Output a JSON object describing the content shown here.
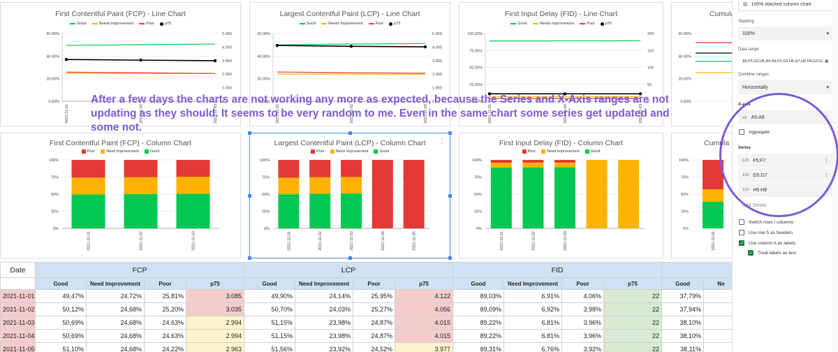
{
  "colors": {
    "good": "#00c853",
    "ni": "#ffb300",
    "poor": "#e53935",
    "p75": "#000000",
    "accent": "#7b5bd6"
  },
  "line_legend": {
    "good": "Good",
    "ni": "Needs Improvement",
    "poor": "Poor",
    "p75": "p75"
  },
  "col_legend": {
    "poor": "Poor",
    "ni": "Need Improvement",
    "good": "Good"
  },
  "cards_top": [
    {
      "title": "First Contentful Paint (FCP) - Line Chart"
    },
    {
      "title": "Largest Contentful Paint (LCP) - Line Chart"
    },
    {
      "title": "First Input Delay (FID) - Line Chart"
    },
    {
      "title": "Cumula"
    }
  ],
  "cards_bottom": [
    {
      "title": "First Contentful Paint (FCP) - Column Chart"
    },
    {
      "title": "Largest Contentful Paint (LCP) - Column Chart"
    },
    {
      "title": "First Input Delay (FID) - Column Chart"
    },
    {
      "title": "Cumula"
    }
  ],
  "chart_data": [
    {
      "type": "line",
      "title": "First Contentful Paint (FCP) - Line Chart",
      "x": [
        "2021-11-01",
        "2021-11-02",
        "2021-11-03"
      ],
      "series": [
        {
          "name": "Good",
          "axis": "left",
          "values": [
            49.47,
            50.12,
            50.69
          ]
        },
        {
          "name": "Needs Improvement",
          "axis": "left",
          "values": [
            24.72,
            24.68,
            24.68
          ]
        },
        {
          "name": "Poor",
          "axis": "left",
          "values": [
            25.81,
            25.2,
            24.63
          ]
        },
        {
          "name": "p75",
          "axis": "right",
          "values": [
            3.085,
            3.035,
            2.994
          ]
        }
      ],
      "yticks_left": [
        "60,00%",
        "40,00%",
        "20,00%",
        "0,00%"
      ],
      "yticks_right": [
        "5.000",
        "4.000",
        "3.000",
        "2.000",
        "1.000",
        "0"
      ]
    },
    {
      "type": "line",
      "title": "Largest Contentful Paint (LCP) - Line Chart",
      "x": [
        "2021-11-01",
        "2021-11-02",
        "2021-11-03"
      ],
      "series": [
        {
          "name": "Good",
          "axis": "left",
          "values": [
            49.9,
            50.7,
            51.15
          ]
        },
        {
          "name": "Needs Improvement",
          "axis": "left",
          "values": [
            24.14,
            24.03,
            23.98
          ]
        },
        {
          "name": "Poor",
          "axis": "left",
          "values": [
            25.95,
            25.27,
            24.87
          ]
        },
        {
          "name": "p75",
          "axis": "right",
          "values": [
            4.122,
            4.056,
            4.015
          ]
        }
      ],
      "yticks_left": [
        "60,00%",
        "40,00%",
        "20,00%",
        "0,00%"
      ],
      "yticks_right": [
        "5.000",
        "4.000",
        "3.000",
        "2.000",
        "1.000",
        "0"
      ]
    },
    {
      "type": "line",
      "title": "First Input Delay (FID) - Line Chart",
      "x": [
        "2021-11-01",
        "2021-11-02",
        "2021-11-03"
      ],
      "series": [
        {
          "name": "Good",
          "axis": "left",
          "values": [
            89.03,
            89.09,
            89.22
          ]
        },
        {
          "name": "Needs Improvement",
          "axis": "left",
          "values": [
            6.91,
            6.92,
            6.81
          ]
        },
        {
          "name": "Poor",
          "axis": "left",
          "values": [
            4.06,
            3.98,
            3.96
          ]
        },
        {
          "name": "p75",
          "axis": "right",
          "values": [
            22,
            22,
            22
          ]
        }
      ],
      "yticks_left": [
        "100,00%",
        "75,00%",
        "50,00%",
        "25,00%",
        "0,00%"
      ],
      "yticks_right": [
        "200",
        "150",
        "100",
        "50",
        "0"
      ]
    },
    {
      "type": "bar",
      "stacked": "100%",
      "title": "First Contentful Paint (FCP) - Column Chart",
      "categories": [
        "2021-11-01",
        "2021-11-02",
        "2021-11-03"
      ],
      "series": [
        {
          "name": "Good",
          "values": [
            49.47,
            50.12,
            50.69
          ]
        },
        {
          "name": "Need Improvement",
          "values": [
            24.72,
            24.68,
            24.68
          ]
        },
        {
          "name": "Poor",
          "values": [
            25.81,
            25.2,
            24.63
          ]
        }
      ],
      "yticks": [
        "100%",
        "75%",
        "50%",
        "25%",
        "0%"
      ]
    },
    {
      "type": "bar",
      "stacked": "100%",
      "title": "Largest Contentful Paint (LCP) - Column Chart",
      "categories": [
        "2021-11-01",
        "2021-11-02",
        "2021-11-03",
        "2021-11-04",
        "2021-11-05"
      ],
      "series": [
        {
          "name": "Good",
          "values": [
            49.9,
            50.7,
            51.15,
            0,
            0
          ]
        },
        {
          "name": "Need Improvement",
          "values": [
            24.14,
            24.03,
            23.98,
            0,
            0
          ]
        },
        {
          "name": "Poor",
          "values": [
            25.95,
            25.27,
            24.87,
            100,
            100
          ]
        }
      ],
      "yticks": [
        "100%",
        "75%",
        "50%",
        "25%",
        "0%"
      ]
    },
    {
      "type": "bar",
      "stacked": "100%",
      "title": "First Input Delay (FID) - Column Chart",
      "categories": [
        "2021-11-01",
        "2021-11-02",
        "2021-11-03",
        "",
        ""
      ],
      "series": [
        {
          "name": "Good",
          "values": [
            89.03,
            89.09,
            89.22,
            0,
            0
          ]
        },
        {
          "name": "Need Improvement",
          "values": [
            6.91,
            6.92,
            6.81,
            100,
            100
          ]
        },
        {
          "name": "Poor",
          "values": [
            4.06,
            3.98,
            3.96,
            0,
            0
          ]
        }
      ],
      "yticks": [
        "100%",
        "75%",
        "50%",
        "25%",
        "0%"
      ]
    }
  ],
  "partial": {
    "top_ticks": [
      "60,00%",
      "40,00%",
      "20,00%",
      "0,00%"
    ],
    "bottom_ticks": [
      "100%",
      "75%",
      "50%",
      "25%",
      "0%"
    ],
    "bottom_x": [
      "2021-11-01"
    ]
  },
  "overlay_text": "After a few days the charts are not working any more as expected, because the Series and X-Axis ranges are not updating as they should. It seems to be very random to me. Even in the same chart some series get updated and some not.",
  "table": {
    "group_headers": [
      "Date",
      "FCP",
      "LCP",
      "FID",
      ""
    ],
    "sub_headers": [
      "",
      "Good",
      "Need Improvement",
      "Poor",
      "p75",
      "Good",
      "Need Improvement",
      "Poor",
      "p75",
      "Good",
      "Need Improvement",
      "Poor",
      "p75",
      "Good",
      "Ne"
    ],
    "rows": [
      [
        "2021-11-01",
        "49,47%",
        "24,72%",
        "25,81%",
        "3.085",
        "49,90%",
        "24,14%",
        "25,95%",
        "4.122",
        "89,03%",
        "6,91%",
        "4,06%",
        "22",
        "37,79%"
      ],
      [
        "2021-11-02",
        "50,12%",
        "24,68%",
        "25,20%",
        "3.035",
        "50,70%",
        "24,03%",
        "25,27%",
        "4.056",
        "89,09%",
        "6,92%",
        "3,98%",
        "22",
        "37,94%"
      ],
      [
        "2021-11-03",
        "50,69%",
        "24,68%",
        "24,63%",
        "2.994",
        "51,15%",
        "23,98%",
        "24,87%",
        "4.015",
        "89,22%",
        "6,81%",
        "3,96%",
        "22",
        "38,10%"
      ],
      [
        "2021-11-04",
        "50,69%",
        "24,68%",
        "24,63%",
        "2.994",
        "51,15%",
        "23,98%",
        "24,87%",
        "4.015",
        "89,22%",
        "6,81%",
        "3,96%",
        "22",
        "38,10%"
      ],
      [
        "2021-11-05",
        "51,10%",
        "24,68%",
        "24,22%",
        "2.963",
        "51,56%",
        "23,92%",
        "24,52%",
        "3.977",
        "89,31%",
        "6,76%",
        "3,92%",
        "22",
        "38,11%"
      ]
    ]
  },
  "panel": {
    "chart_type": "100% stacked column chart",
    "stacking_label": "Stacking",
    "stacking": "100%",
    "range_label": "Data range",
    "range": "A5,F5,G5,H5,A5:A9,F5,G5,H5,H7,H5:H9,G5:G7",
    "combine_label": "Combine ranges",
    "combine": "Horizontally",
    "xaxis_label": "X-axis",
    "xaxis": "A5:A9",
    "aggregate": "Aggregate",
    "series_label": "Series",
    "series": [
      "F5:F7",
      "G5:G7",
      "H5:H9"
    ],
    "add_series": "Add Series",
    "switch": "Switch rows / columns",
    "row5": "Use row 5 as headers",
    "colA": "Use column A as labels",
    "treat": "Treat labels as text",
    "series_icon": "123"
  }
}
